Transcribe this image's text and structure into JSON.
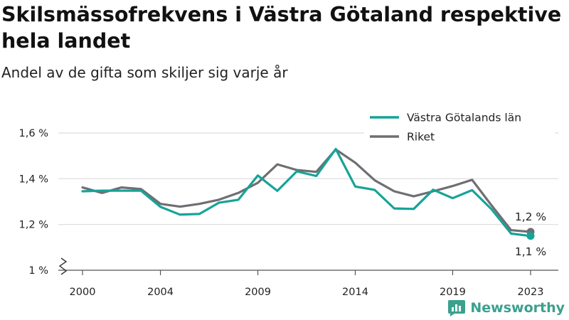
{
  "title": "Skilsmässofrekvens i Västra Götaland respektive hela landet",
  "subtitle": "Andel av de gifta som skiljer sig varje år",
  "brand": {
    "name": "Newsworthy",
    "icon": "newsworthy-logo-icon",
    "color": "#3aa18e"
  },
  "chart_data": {
    "type": "line",
    "x": [
      2000,
      2001,
      2002,
      2003,
      2004,
      2005,
      2006,
      2007,
      2008,
      2009,
      2010,
      2011,
      2012,
      2013,
      2014,
      2015,
      2016,
      2017,
      2018,
      2019,
      2020,
      2021,
      2022,
      2023
    ],
    "x_ticks": [
      2000,
      2004,
      2009,
      2014,
      2019,
      2023
    ],
    "x_tick_labels": [
      "2000",
      "2004",
      "2009",
      "2014",
      "2019",
      "2023"
    ],
    "y_ticks": [
      1.0,
      1.2,
      1.4,
      1.6
    ],
    "y_tick_labels": [
      "1 %",
      "1,2 %",
      "1,4 %",
      "1,6 %"
    ],
    "ylim": [
      1.0,
      1.6
    ],
    "y_axis_break": true,
    "grid": true,
    "legend_position": "top-right",
    "series": [
      {
        "name": "Västra Götalands län",
        "color": "#17a398",
        "values": [
          1.345,
          1.348,
          1.348,
          1.348,
          1.277,
          1.243,
          1.246,
          1.295,
          1.308,
          1.414,
          1.347,
          1.432,
          1.412,
          1.53,
          1.366,
          1.351,
          1.27,
          1.268,
          1.352,
          1.315,
          1.35,
          1.266,
          1.16,
          1.15
        ],
        "end_label": "1,1 %"
      },
      {
        "name": "Riket",
        "color": "#6e6e73",
        "values": [
          1.362,
          1.338,
          1.362,
          1.355,
          1.29,
          1.278,
          1.29,
          1.308,
          1.338,
          1.382,
          1.463,
          1.438,
          1.43,
          1.528,
          1.47,
          1.393,
          1.345,
          1.323,
          1.345,
          1.368,
          1.395,
          1.283,
          1.175,
          1.168
        ],
        "end_label": "1,2 %"
      }
    ]
  }
}
